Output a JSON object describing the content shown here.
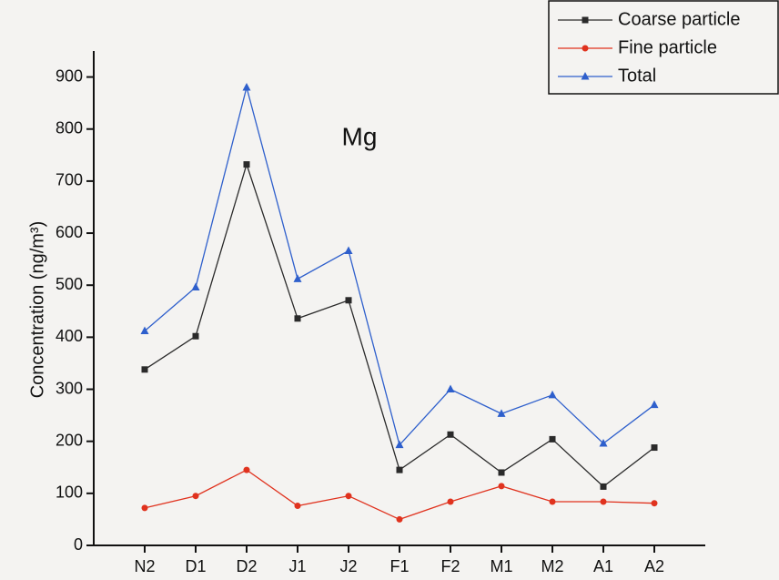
{
  "chart_data": {
    "type": "line",
    "annotation": "Mg",
    "y_label": "Concentration (ng/m³)",
    "categories": [
      "N2",
      "D1",
      "D2",
      "J1",
      "J2",
      "F1",
      "F2",
      "M1",
      "M2",
      "A1",
      "A2"
    ],
    "series": [
      {
        "name": "Coarse particle",
        "color": "#2a2a2a",
        "marker": "square",
        "values": [
          338,
          402,
          732,
          436,
          471,
          145,
          213,
          140,
          204,
          113,
          188
        ]
      },
      {
        "name": "Fine particle",
        "color": "#e0321e",
        "marker": "circle",
        "values": [
          72,
          95,
          145,
          76,
          95,
          50,
          84,
          114,
          84,
          84,
          81
        ]
      },
      {
        "name": "Total",
        "color": "#2e5fcc",
        "marker": "triangle",
        "values": [
          412,
          496,
          880,
          512,
          566,
          193,
          300,
          253,
          289,
          196,
          270
        ]
      }
    ],
    "ylim": [
      0,
      950
    ],
    "yticks": [
      0,
      100,
      200,
      300,
      400,
      500,
      600,
      700,
      800,
      900
    ],
    "legend": "top-right",
    "grid": false
  }
}
